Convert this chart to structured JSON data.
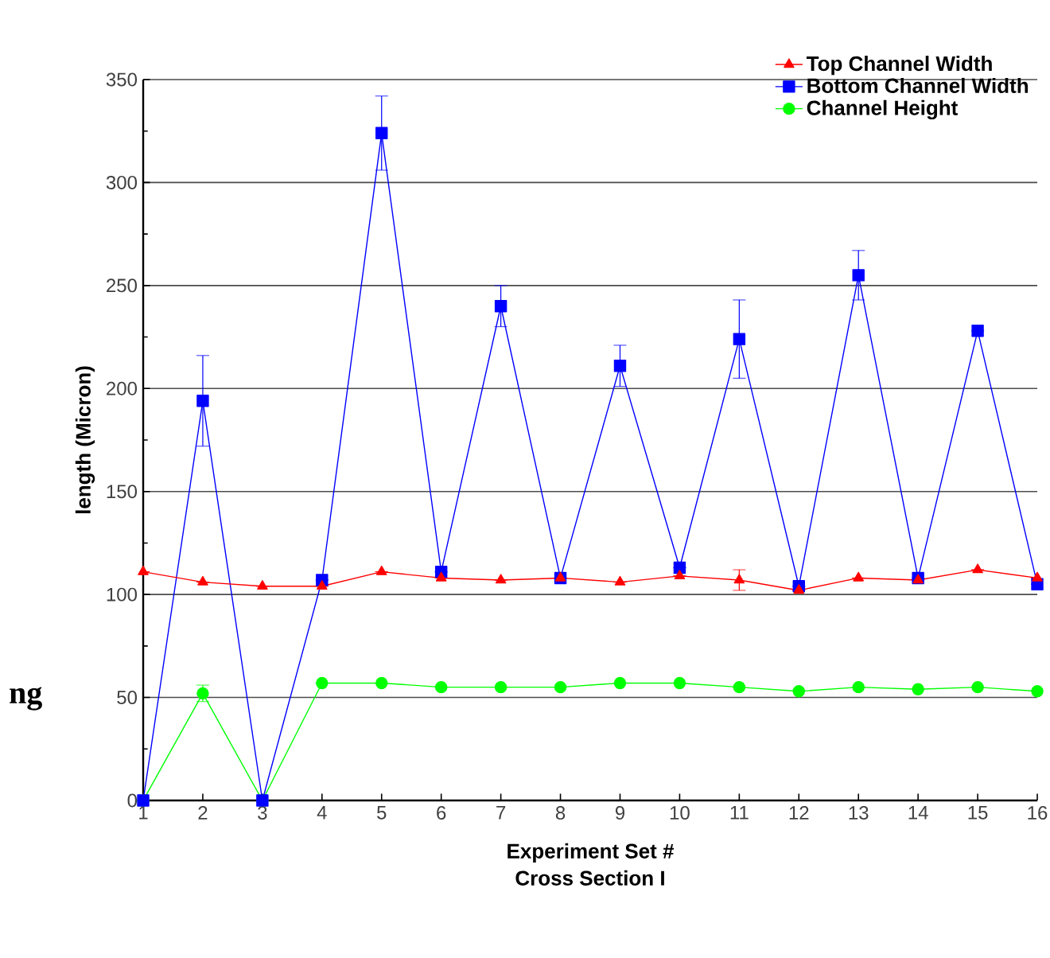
{
  "chart_data": {
    "type": "line",
    "xlabel": "Experiment Set #",
    "subtitle": "Cross Section I",
    "ylabel": "length (Micron)",
    "x": [
      1,
      2,
      3,
      4,
      5,
      6,
      7,
      8,
      9,
      10,
      11,
      12,
      13,
      14,
      15,
      16
    ],
    "xlim": [
      1,
      16
    ],
    "xticks": [
      1,
      2,
      3,
      4,
      5,
      6,
      7,
      8,
      9,
      10,
      11,
      12,
      13,
      14,
      15,
      16
    ],
    "ylim": [
      0,
      350
    ],
    "yticks": [
      0,
      50,
      100,
      150,
      200,
      250,
      300,
      350
    ],
    "grid": "y",
    "legend": "top right",
    "line_style": "solid",
    "series": [
      {
        "name": "Top Channel Width",
        "color": "#ff0000",
        "marker": "triangle",
        "values": [
          111,
          106,
          104,
          104,
          111,
          108,
          107,
          108,
          106,
          109,
          107,
          102,
          108,
          107,
          112,
          108
        ],
        "errors": [
          null,
          null,
          null,
          null,
          null,
          null,
          null,
          null,
          null,
          null,
          5,
          null,
          null,
          null,
          null,
          null
        ]
      },
      {
        "name": "Bottom Channel Width",
        "color": "#0000ff",
        "marker": "square",
        "values": [
          0,
          194,
          0,
          107,
          324,
          111,
          240,
          108,
          211,
          113,
          224,
          104,
          255,
          108,
          228,
          105
        ],
        "errors": [
          null,
          22,
          null,
          null,
          18,
          null,
          10,
          null,
          10,
          null,
          19,
          null,
          12,
          null,
          null,
          null
        ]
      },
      {
        "name": "Channel Height",
        "color": "#00ff00",
        "marker": "circle",
        "values": [
          0,
          52,
          0,
          57,
          57,
          55,
          55,
          55,
          57,
          57,
          55,
          53,
          55,
          54,
          55,
          53
        ],
        "errors": [
          null,
          4,
          null,
          null,
          null,
          null,
          null,
          null,
          null,
          null,
          null,
          null,
          null,
          null,
          null,
          null
        ]
      }
    ],
    "annotations": [
      "ng"
    ]
  }
}
